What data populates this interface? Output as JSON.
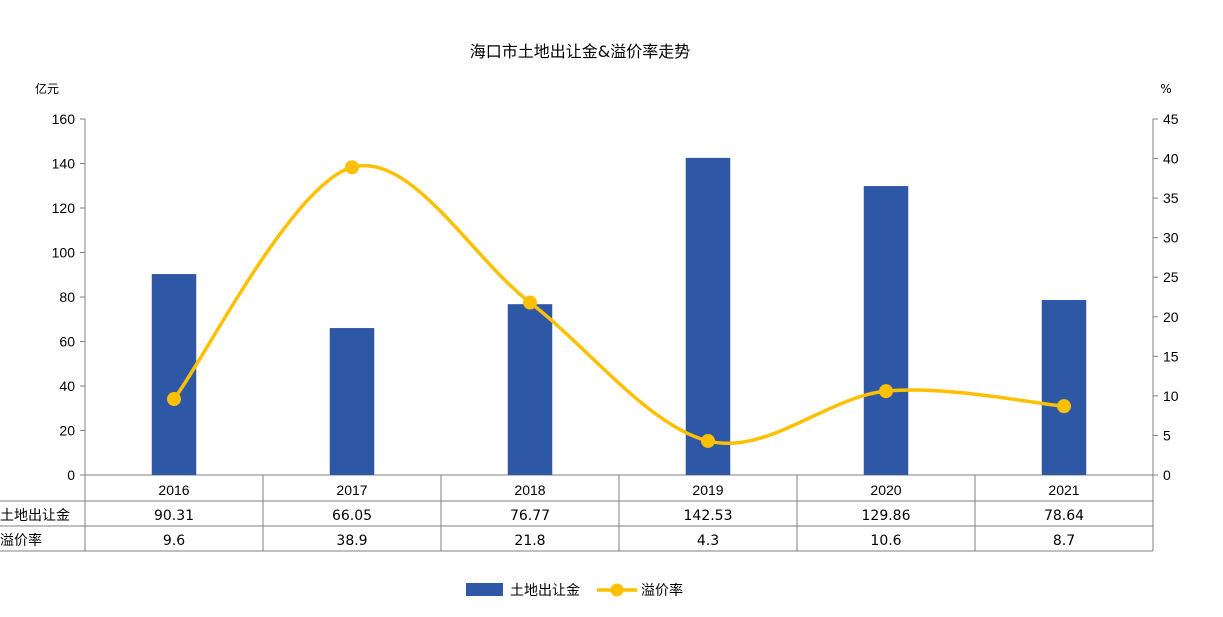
{
  "chart_data": {
    "type": "bar",
    "title": "海口市土地出让金&溢价率走势",
    "y_unit_left": "亿元",
    "y_unit_right": "%",
    "categories": [
      "2016",
      "2017",
      "2018",
      "2019",
      "2020",
      "2021"
    ],
    "ylim_left": [
      0,
      160
    ],
    "yticks_left": [
      "0",
      "20",
      "40",
      "60",
      "80",
      "100",
      "120",
      "140",
      "160"
    ],
    "ylim_right": [
      0,
      45
    ],
    "yticks_right": [
      "0",
      "5",
      "10",
      "15",
      "20",
      "25",
      "30",
      "35",
      "40",
      "45"
    ],
    "series": [
      {
        "name": "土地出让金",
        "kind": "bar",
        "axis": "left",
        "color": "#2E58A6",
        "values": [
          90.31,
          66.05,
          76.77,
          142.53,
          129.86,
          78.64
        ],
        "table_labels": [
          "90.31",
          "66.05",
          "76.77",
          "142.53",
          "129.86",
          "78.64"
        ]
      },
      {
        "name": "溢价率",
        "kind": "line",
        "axis": "right",
        "smooth": true,
        "color": "#FFC000",
        "values": [
          9.6,
          38.9,
          21.8,
          4.3,
          10.6,
          8.7
        ],
        "table_labels": [
          "9.6",
          "38.9",
          "21.8",
          "4.3",
          "10.6",
          "8.7"
        ]
      }
    ],
    "legend": {
      "position": "bottom"
    },
    "grid": false,
    "data_table": true
  }
}
